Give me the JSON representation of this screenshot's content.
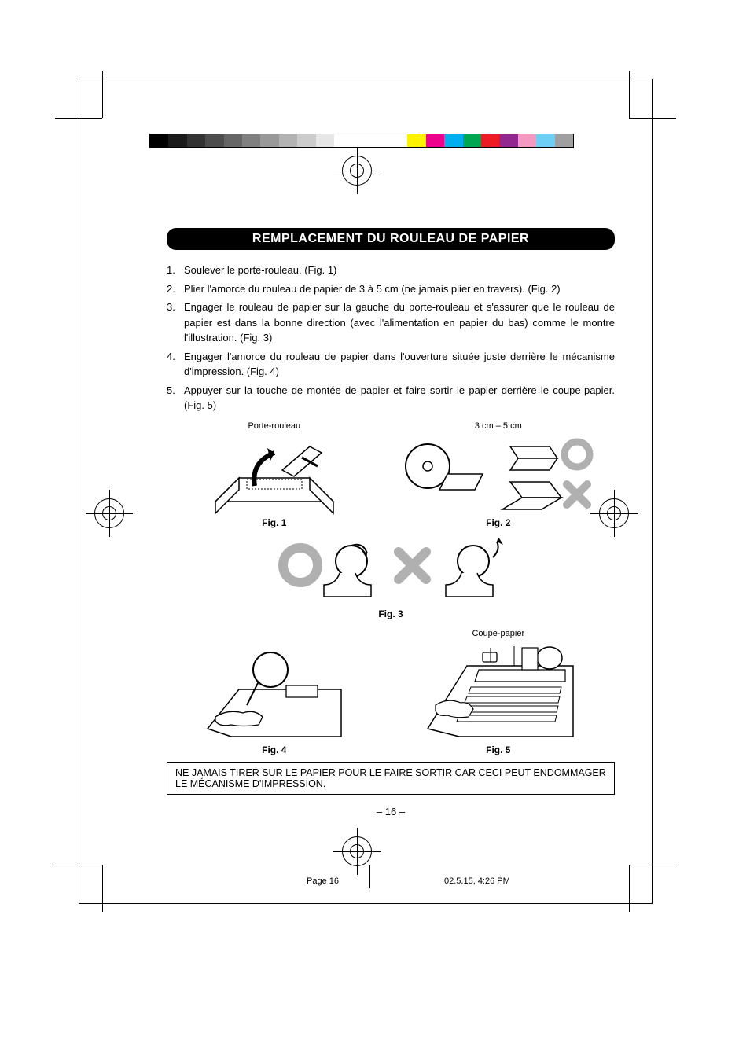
{
  "colorbar_left": {
    "swatches": [
      "#000000",
      "#1a1a1a",
      "#333333",
      "#4d4d4d",
      "#666666",
      "#808080",
      "#999999",
      "#b3b3b3",
      "#cccccc",
      "#e6e6e6",
      "#ffffff"
    ]
  },
  "colorbar_right": {
    "swatches": [
      "#fff200",
      "#ec008c",
      "#00aeef",
      "#00a651",
      "#ed1c24",
      "#92278f",
      "#f49ac1",
      "#6dcff6",
      "#a0a0a0"
    ]
  },
  "header": "REMPLACEMENT DU ROULEAU DE PAPIER",
  "steps": [
    {
      "num": "1.",
      "text": "Soulever le porte-rouleau. (Fig. 1)"
    },
    {
      "num": "2.",
      "text": "Plier l'amorce du rouleau de papier de 3 à 5 cm (ne jamais plier en travers). (Fig. 2)"
    },
    {
      "num": "3.",
      "text": "Engager le rouleau de papier sur la gauche du porte-rouleau et s'assurer que le rouleau de papier est dans la bonne direction (avec l'alimentation en papier du bas) comme le montre l'illustration. (Fig. 3)"
    },
    {
      "num": "4.",
      "text": "Engager l'amorce du rouleau de papier dans l'ouverture située juste derrière le mécanisme d'impression. (Fig. 4)"
    },
    {
      "num": "5.",
      "text": "Appuyer sur la touche de montée de papier et faire sortir le papier derrière le coupe-papier. (Fig. 5)"
    }
  ],
  "labels": {
    "porte_rouleau": "Porte-rouleau",
    "dim": "3 cm – 5 cm",
    "coupe_papier": "Coupe-papier",
    "fig1": "Fig. 1",
    "fig2": "Fig. 2",
    "fig3": "Fig. 3",
    "fig4": "Fig. 4",
    "fig5": "Fig. 5"
  },
  "warning": "NE JAMAIS TIRER SUR LE PAPIER POUR LE FAIRE SORTIR CAR CECI PEUT ENDOMMAGER LE MÉCANISME D'IMPRESSION.",
  "pagenum": "– 16 –",
  "footer": {
    "page": "Page 16",
    "timestamp": "02.5.15, 4:26 PM"
  },
  "mark_colors": {
    "ok": "#b0b0b0",
    "bad": "#b0b0b0"
  }
}
